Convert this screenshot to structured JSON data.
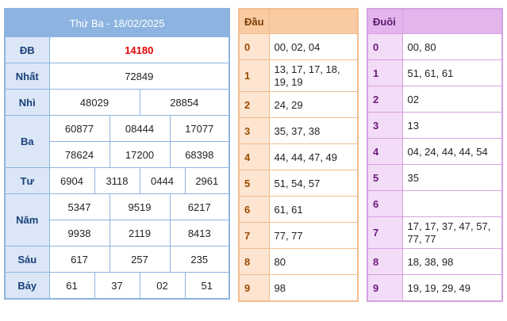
{
  "results": {
    "title": "Thứ Ba - 18/02/2025",
    "rows": {
      "db": {
        "label": "ĐB",
        "values": [
          "14180"
        ]
      },
      "nhat": {
        "label": "Nhất",
        "values": [
          "72849"
        ]
      },
      "nhi": {
        "label": "Nhì",
        "values": [
          "48029",
          "28854"
        ]
      },
      "ba": {
        "label": "Ba",
        "values": [
          "60877",
          "08444",
          "17077",
          "78624",
          "17200",
          "68398"
        ]
      },
      "tu": {
        "label": "Tư",
        "values": [
          "6904",
          "3118",
          "0444",
          "2961"
        ]
      },
      "nam": {
        "label": "Năm",
        "values": [
          "5347",
          "9519",
          "6217",
          "9938",
          "2119",
          "8413"
        ]
      },
      "sau": {
        "label": "Sáu",
        "values": [
          "617",
          "257",
          "235"
        ]
      },
      "bay": {
        "label": "Bảy",
        "values": [
          "61",
          "37",
          "02",
          "51"
        ]
      }
    }
  },
  "dau": {
    "header": "Đầu",
    "rows": [
      {
        "key": "0",
        "value": "00, 02, 04"
      },
      {
        "key": "1",
        "value": "13, 17, 17, 18, 19, 19"
      },
      {
        "key": "2",
        "value": "24, 29"
      },
      {
        "key": "3",
        "value": "35, 37, 38"
      },
      {
        "key": "4",
        "value": "44, 44, 47, 49"
      },
      {
        "key": "5",
        "value": "51, 54, 57"
      },
      {
        "key": "6",
        "value": "61, 61"
      },
      {
        "key": "7",
        "value": "77, 77"
      },
      {
        "key": "8",
        "value": "80"
      },
      {
        "key": "9",
        "value": "98"
      }
    ]
  },
  "duoi": {
    "header": "Đuôi",
    "rows": [
      {
        "key": "0",
        "value": "00, 80"
      },
      {
        "key": "1",
        "value": "51, 61, 61"
      },
      {
        "key": "2",
        "value": "02"
      },
      {
        "key": "3",
        "value": "13"
      },
      {
        "key": "4",
        "value": "04, 24, 44, 44, 54"
      },
      {
        "key": "5",
        "value": "35"
      },
      {
        "key": "6",
        "value": ""
      },
      {
        "key": "7",
        "value": "17, 17, 37, 47, 57, 77, 77"
      },
      {
        "key": "8",
        "value": "18, 38, 98"
      },
      {
        "key": "9",
        "value": "19, 19, 29, 49"
      }
    ]
  },
  "colors": {
    "results_border": "#8db4e0",
    "dau_border": "#f3bd8e",
    "duoi_border": "#d5a2e0",
    "special_prize": "#e60000"
  }
}
